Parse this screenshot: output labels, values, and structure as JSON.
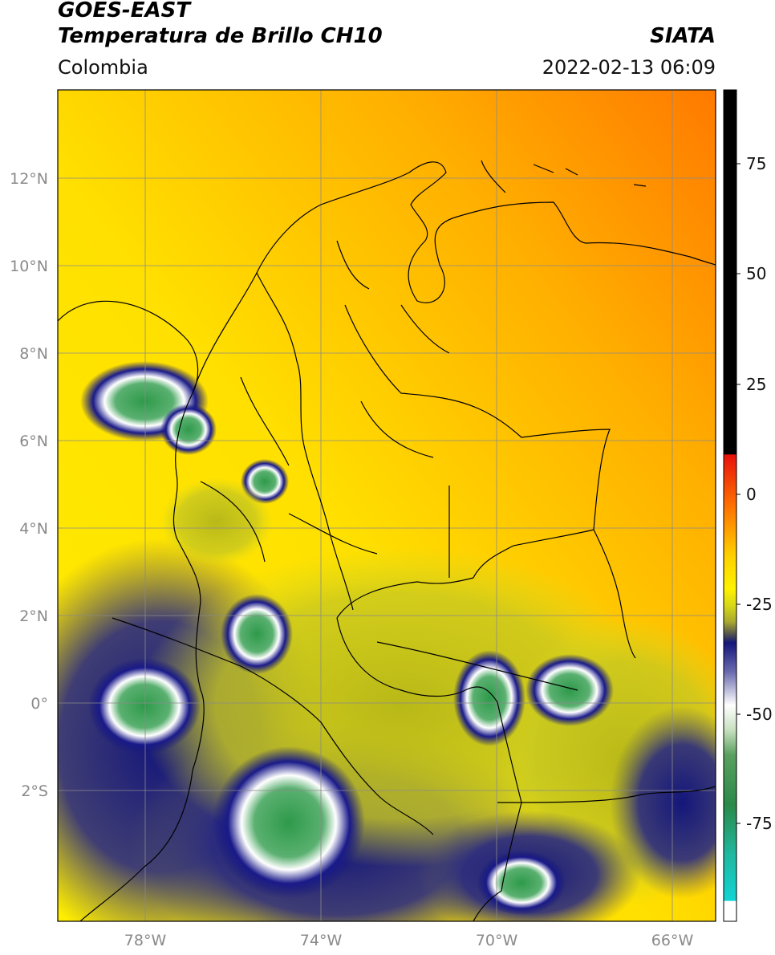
{
  "header": {
    "title_line1": "GOES-EAST",
    "title_line2": "Temperatura de Brillo CH10",
    "region": "Colombia",
    "organization": "SIATA",
    "datetime": "2022-02-13 06:09"
  },
  "map": {
    "lat_ticks": [
      "12°N",
      "10°N",
      "8°N",
      "6°N",
      "4°N",
      "2°N",
      "0°",
      "2°S"
    ],
    "lon_ticks": [
      "78°W",
      "74°W",
      "70°W",
      "66°W"
    ],
    "lat_range": [
      -4.6,
      14.0
    ],
    "lon_range": [
      -80.0,
      -65.0
    ]
  },
  "colorbar": {
    "ticks": [
      "75",
      "50",
      "25",
      "0",
      "-25",
      "-50",
      "-75"
    ],
    "range": [
      -98,
      90
    ],
    "colors": {
      "black": "#000000",
      "red": "#e8120c",
      "orange": "#ff8a00",
      "yellow": "#fff200",
      "olive": "#b8b818",
      "navy": "#14167a",
      "white": "#ffffff",
      "green": "#2e9a4a",
      "cyan": "#12d4d4"
    }
  }
}
